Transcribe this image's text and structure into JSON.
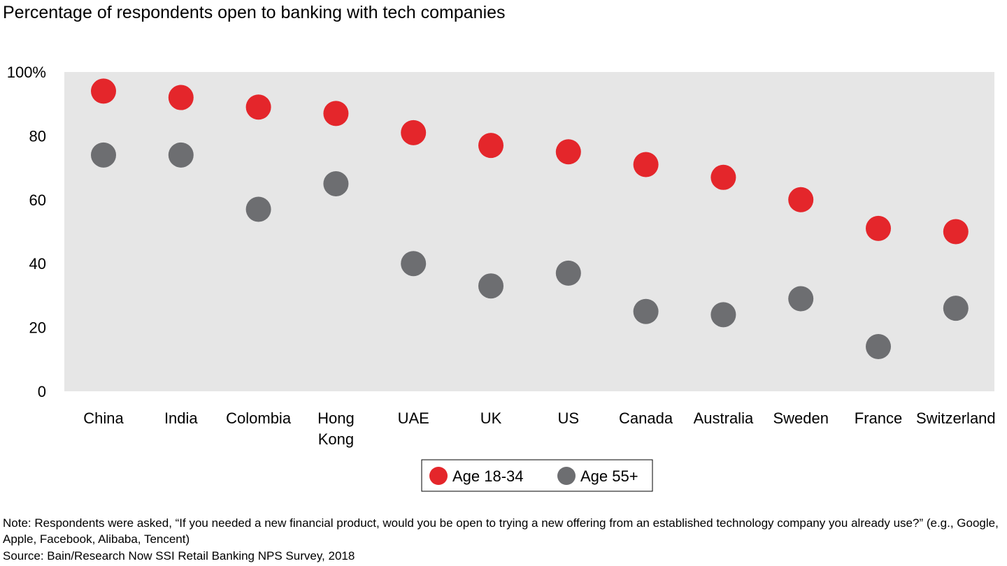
{
  "chart_data": {
    "type": "scatter",
    "title": "Percentage of respondents open to banking with tech companies",
    "categories": [
      "China",
      "India",
      "Colombia",
      "Hong Kong",
      "UAE",
      "UK",
      "US",
      "Canada",
      "Australia",
      "Sweden",
      "France",
      "Switzerland"
    ],
    "series": [
      {
        "name": "Age 18-34",
        "color": "#e4262b",
        "values": [
          94,
          92,
          89,
          87,
          81,
          77,
          75,
          71,
          67,
          60,
          51,
          50
        ]
      },
      {
        "name": "Age 55+",
        "color": "#6d6e71",
        "values": [
          74,
          74,
          57,
          65,
          40,
          33,
          37,
          25,
          24,
          29,
          14,
          26
        ]
      }
    ],
    "ylim": [
      0,
      100
    ],
    "yticks": [
      0,
      20,
      40,
      60,
      80,
      100
    ],
    "ytick_labels": [
      "0",
      "20",
      "40",
      "60",
      "80",
      "100%"
    ],
    "plot_background": "#e6e6e6",
    "grid": false,
    "legend_placement": "bottom-center"
  },
  "notes": {
    "note": "Note: Respondents were asked, “If you needed a new financial product, would you be open to trying a new offering from an established technology company you already use?” (e.g., Google, Apple, Facebook, Alibaba, Tencent)",
    "source": "Source: Bain/Research Now SSI Retail Banking NPS Survey, 2018"
  }
}
